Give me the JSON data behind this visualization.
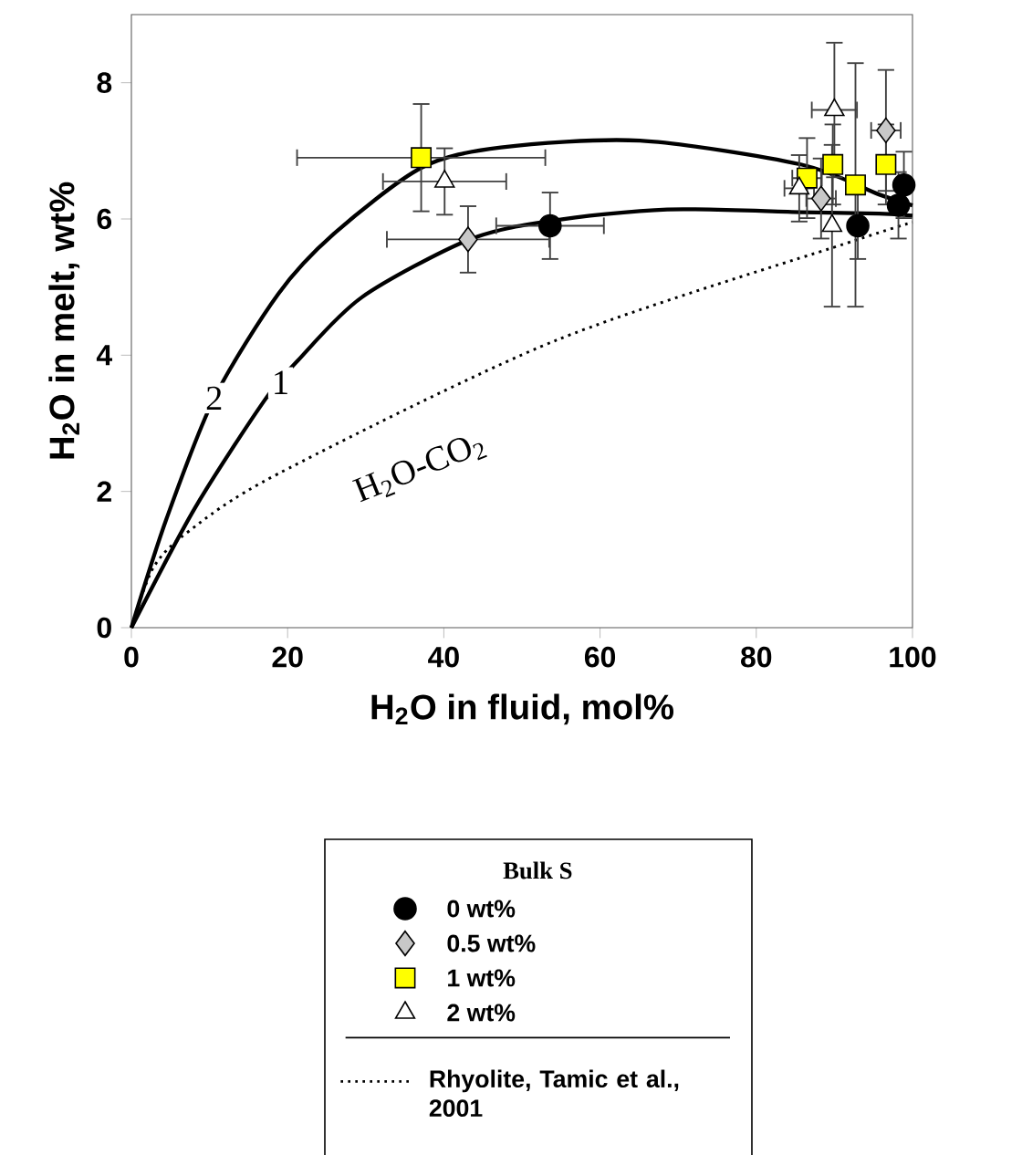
{
  "chart_data": {
    "type": "scatter",
    "xlabel": "H$_{2}$O in fluid, mol%",
    "ylabel": "H$_{2}$O in melt, wt%",
    "legend_title": "Bulk S",
    "legend": "bottom",
    "xlim": [
      0,
      100
    ],
    "ylim": [
      0,
      9
    ],
    "xticks": [
      0,
      20,
      40,
      60,
      80,
      100
    ],
    "yticks": [
      0,
      2,
      4,
      6,
      8
    ],
    "series": [
      {
        "name": "0 wt%",
        "marker": "circle",
        "color": "#000000",
        "x": [
          53.6,
          93.0,
          98.2,
          98.9
        ],
        "values": [
          5.9,
          5.9,
          6.2,
          6.5
        ],
        "errors": [
          0.5,
          0.5,
          0.5,
          0.5
        ],
        "xerrors": [
          7,
          null,
          null,
          null
        ]
      },
      {
        "name": "0.5 wt%",
        "marker": "diamond",
        "color": "#c8c8c8",
        "x": [
          43.1,
          88.3,
          96.6
        ],
        "values": [
          5.7,
          6.3,
          7.3
        ],
        "errors": [
          0.5,
          0.6,
          0.9
        ],
        "xerrors": [
          10.5,
          2,
          2
        ]
      },
      {
        "name": "1 wt%",
        "marker": "square",
        "color": "#ffff00",
        "x": [
          37.1,
          86.5,
          89.8,
          92.7,
          96.6
        ],
        "values": [
          6.9,
          6.6,
          6.8,
          6.5,
          6.8
        ],
        "errors": [
          0.8,
          0.6,
          0.6,
          1.8,
          0.6
        ],
        "xerrors": [
          16,
          2,
          null,
          null,
          null
        ]
      },
      {
        "name": "2 wt%",
        "marker": "triangle",
        "color": "#ffffff",
        "x": [
          40.1,
          85.5,
          89.7,
          90.0
        ],
        "values": [
          6.55,
          6.45,
          5.9,
          7.6
        ],
        "errors": [
          0.5,
          0.5,
          1.2,
          1.0
        ],
        "xerrors": [
          8,
          2,
          null,
          3
        ]
      },
      {
        "type": "line",
        "line_style": "solid",
        "marker": "none",
        "color": "#000000",
        "x": [
          0,
          4.5,
          10.6,
          18.8,
          25.9,
          37.1,
          47.3,
          65.1,
          85.7,
          95.7,
          100
        ],
        "values": [
          0,
          1.6,
          3.37,
          4.9,
          5.78,
          6.75,
          7.05,
          7.15,
          6.8,
          6.36,
          6.2
        ]
      },
      {
        "type": "line",
        "line_style": "solid",
        "marker": "none",
        "color": "#000000",
        "x": [
          0,
          8.1,
          17.0,
          21.3,
          29.5,
          43.1,
          53.6,
          68.6,
          85.7,
          95.7,
          100
        ],
        "values": [
          0,
          1.75,
          3.33,
          3.92,
          4.85,
          5.69,
          5.97,
          6.14,
          6.1,
          6.08,
          6.05
        ]
      },
      {
        "type": "line",
        "line_style": "dotted",
        "marker": "none",
        "color": "#000000",
        "name": "Rhyolite, Tamic et al., 2001",
        "x": [
          0,
          2.8,
          7.4,
          18.8,
          54.4,
          92.8,
          100
        ],
        "values": [
          0,
          0.88,
          1.42,
          2.26,
          4.22,
          5.69,
          5.95
        ]
      }
    ],
    "annotations": [
      {
        "text": "2",
        "x": 10.6,
        "y": 3.37
      },
      {
        "text": "1",
        "x": 19.1,
        "y": 3.6
      },
      "H$_{2}$O-CO$_{2}$"
    ]
  }
}
